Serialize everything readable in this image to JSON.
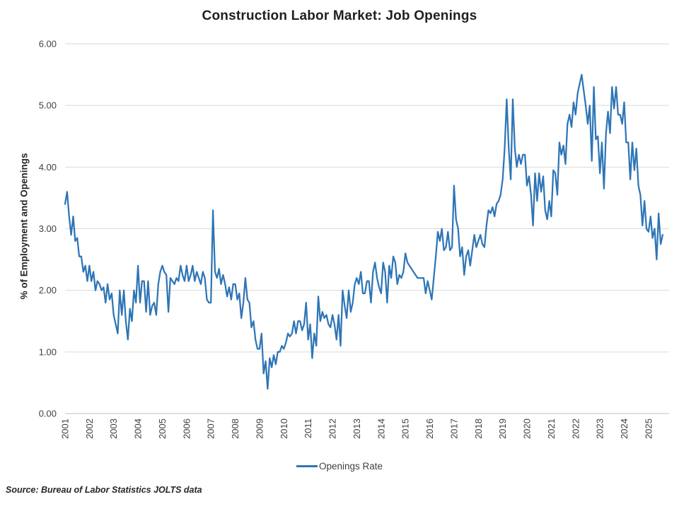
{
  "title": "Construction Labor Market: Job Openings",
  "legend": {
    "label": "Openings Rate"
  },
  "source": "Source: Bureau of Labor Statistics JOLTS data",
  "y_axis": {
    "title": "% of Employment and Openings",
    "tick_labels": [
      "0.00",
      "1.00",
      "2.00",
      "3.00",
      "4.00",
      "5.00",
      "6.00"
    ]
  },
  "x_axis": {
    "tick_labels": [
      "2001",
      "2002",
      "2003",
      "2004",
      "2005",
      "2006",
      "2007",
      "2008",
      "2009",
      "2010",
      "2011",
      "2012",
      "2013",
      "2014",
      "2015",
      "2016",
      "2017",
      "2018",
      "2019",
      "2020",
      "2021",
      "2022",
      "2023",
      "2024",
      "2025"
    ]
  },
  "colors": {
    "line": "#2E75B6",
    "gridline": "#D9D9D9",
    "axis": "#BFBFBF",
    "tick_text": "#404040"
  },
  "chart_data": {
    "type": "line",
    "title": "Construction Labor Market: Job Openings",
    "xlabel": "",
    "ylabel": "% of Employment and Openings",
    "ylim": [
      0,
      6
    ],
    "grid": "horizontal",
    "legend_position": "bottom",
    "x_start": "2001-01",
    "frequency": "monthly",
    "x_tick_years": [
      2001,
      2002,
      2003,
      2004,
      2005,
      2006,
      2007,
      2008,
      2009,
      2010,
      2011,
      2012,
      2013,
      2014,
      2015,
      2016,
      2017,
      2018,
      2019,
      2020,
      2021,
      2022,
      2023,
      2024,
      2025
    ],
    "series": [
      {
        "name": "Openings Rate",
        "values": [
          3.4,
          3.6,
          3.2,
          2.9,
          3.2,
          2.8,
          2.85,
          2.55,
          2.55,
          2.3,
          2.4,
          2.15,
          2.4,
          2.15,
          2.3,
          2.0,
          2.15,
          2.1,
          2.0,
          2.05,
          1.8,
          2.1,
          1.85,
          1.95,
          1.6,
          1.45,
          1.3,
          2.0,
          1.6,
          2.0,
          1.5,
          1.2,
          1.7,
          1.5,
          2.0,
          1.8,
          2.4,
          1.8,
          2.15,
          2.15,
          1.65,
          2.15,
          1.6,
          1.75,
          1.8,
          1.6,
          2.1,
          2.3,
          2.4,
          2.3,
          2.25,
          1.65,
          2.2,
          2.15,
          2.1,
          2.2,
          2.15,
          2.4,
          2.25,
          2.15,
          2.4,
          2.15,
          2.25,
          2.4,
          2.15,
          2.3,
          2.2,
          2.1,
          2.3,
          2.2,
          1.85,
          1.8,
          1.8,
          3.3,
          2.3,
          2.2,
          2.35,
          2.1,
          2.25,
          2.1,
          1.9,
          2.05,
          1.85,
          2.1,
          2.1,
          1.85,
          1.95,
          1.55,
          1.8,
          2.2,
          1.85,
          1.8,
          1.4,
          1.5,
          1.2,
          1.05,
          1.05,
          1.3,
          0.65,
          0.85,
          0.4,
          0.9,
          0.75,
          0.95,
          0.8,
          1.0,
          1.0,
          1.1,
          1.05,
          1.15,
          1.3,
          1.25,
          1.3,
          1.5,
          1.3,
          1.5,
          1.5,
          1.35,
          1.45,
          1.8,
          1.2,
          1.45,
          0.9,
          1.3,
          1.1,
          1.9,
          1.5,
          1.65,
          1.55,
          1.6,
          1.45,
          1.4,
          1.6,
          1.45,
          1.2,
          1.6,
          1.1,
          2.0,
          1.75,
          1.55,
          2.0,
          1.65,
          1.8,
          2.1,
          2.2,
          2.1,
          2.3,
          1.95,
          1.95,
          2.15,
          2.15,
          1.8,
          2.3,
          2.45,
          2.2,
          2.05,
          1.95,
          2.45,
          2.3,
          1.8,
          2.4,
          2.2,
          2.55,
          2.45,
          2.1,
          2.25,
          2.2,
          2.3,
          2.6,
          2.45,
          2.4,
          2.35,
          2.3,
          2.25,
          2.2,
          2.2,
          2.2,
          2.2,
          1.95,
          2.15,
          2.0,
          1.85,
          2.2,
          2.55,
          2.95,
          2.8,
          3.0,
          2.65,
          2.7,
          2.95,
          2.65,
          2.7,
          3.7,
          3.15,
          3.0,
          2.55,
          2.7,
          2.25,
          2.55,
          2.65,
          2.4,
          2.65,
          2.9,
          2.7,
          2.8,
          2.9,
          2.75,
          2.7,
          3.05,
          3.3,
          3.25,
          3.35,
          3.2,
          3.4,
          3.45,
          3.55,
          3.8,
          4.3,
          5.1,
          4.3,
          3.8,
          5.1,
          4.3,
          4.0,
          4.2,
          4.05,
          4.2,
          4.2,
          3.7,
          3.85,
          3.55,
          3.05,
          3.9,
          3.45,
          3.9,
          3.6,
          3.85,
          3.3,
          3.15,
          3.45,
          3.2,
          3.95,
          3.9,
          3.55,
          4.4,
          4.2,
          4.35,
          4.05,
          4.7,
          4.85,
          4.65,
          5.05,
          4.85,
          5.2,
          5.35,
          5.5,
          5.25,
          5.0,
          4.7,
          5.0,
          4.1,
          5.3,
          4.45,
          4.5,
          3.9,
          4.4,
          3.65,
          4.55,
          4.9,
          4.55,
          5.3,
          4.95,
          5.3,
          4.85,
          4.85,
          4.7,
          5.05,
          4.4,
          4.4,
          3.8,
          4.4,
          3.95,
          4.3,
          3.7,
          3.55,
          3.05,
          3.45,
          3.0,
          2.95,
          3.2,
          2.85,
          3.0,
          2.5,
          3.25,
          2.75,
          2.9
        ]
      }
    ]
  }
}
